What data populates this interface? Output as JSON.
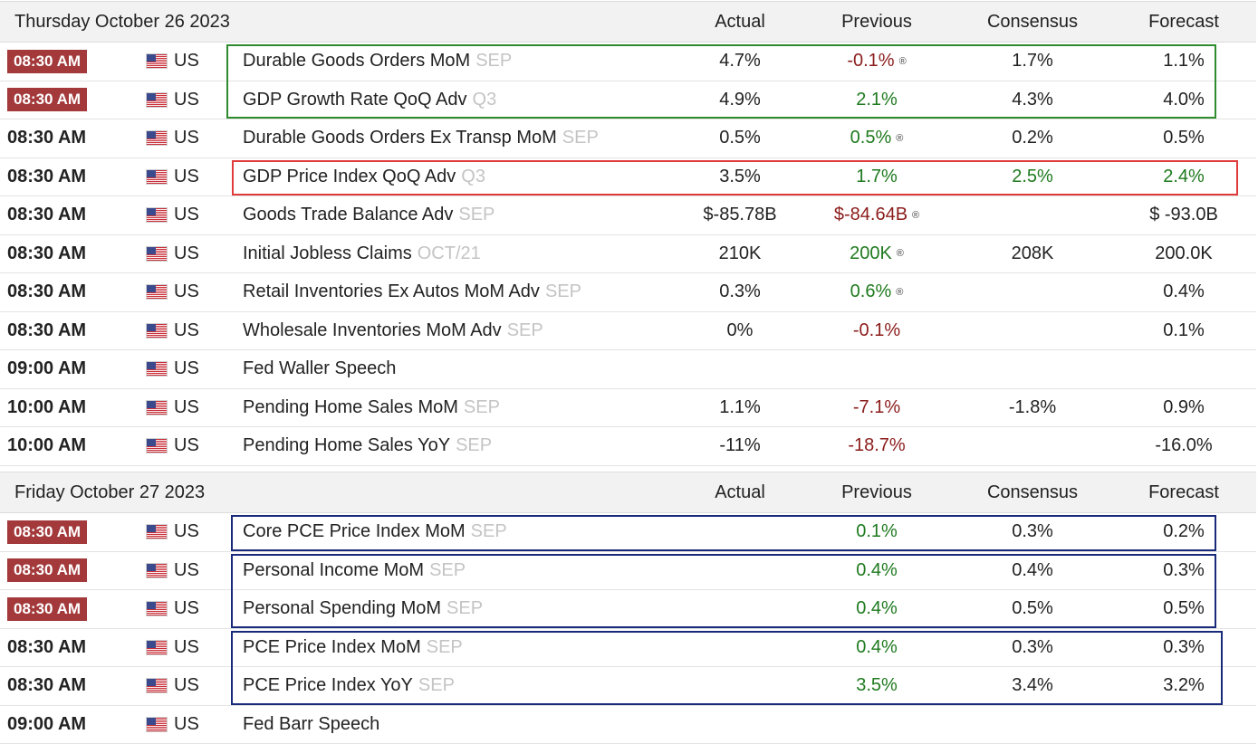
{
  "days": [
    {
      "title": "Thursday October 26 2023",
      "columns": {
        "actual": "Actual",
        "previous": "Previous",
        "consensus": "Consensus",
        "forecast": "Forecast"
      },
      "events": [
        {
          "time": "08:30 AM",
          "time_highlight": true,
          "country": "US",
          "event": "Durable Goods Orders MoM",
          "ref": "SEP",
          "actual": "4.7%",
          "previous": "-0.1%",
          "previous_color": "neg",
          "previous_revised": true,
          "consensus": "1.7%",
          "consensus_color": "neu",
          "forecast": "1.1%",
          "forecast_color": "neu"
        },
        {
          "time": "08:30 AM",
          "time_highlight": true,
          "country": "US",
          "event": "GDP Growth Rate QoQ Adv",
          "ref": "Q3",
          "actual": "4.9%",
          "previous": "2.1%",
          "previous_color": "pos",
          "previous_revised": false,
          "consensus": "4.3%",
          "consensus_color": "neu",
          "forecast": "4.0%",
          "forecast_color": "neu"
        },
        {
          "time": "08:30 AM",
          "time_highlight": false,
          "country": "US",
          "event": "Durable Goods Orders Ex Transp MoM",
          "ref": "SEP",
          "actual": "0.5%",
          "previous": "0.5%",
          "previous_color": "pos",
          "previous_revised": true,
          "consensus": "0.2%",
          "consensus_color": "neu",
          "forecast": "0.5%",
          "forecast_color": "neu"
        },
        {
          "time": "08:30 AM",
          "time_highlight": false,
          "country": "US",
          "event": "GDP Price Index QoQ Adv",
          "ref": "Q3",
          "actual": "3.5%",
          "previous": "1.7%",
          "previous_color": "pos",
          "previous_revised": false,
          "consensus": "2.5%",
          "consensus_color": "pos",
          "forecast": "2.4%",
          "forecast_color": "pos"
        },
        {
          "time": "08:30 AM",
          "time_highlight": false,
          "country": "US",
          "event": "Goods Trade Balance Adv",
          "ref": "SEP",
          "actual": "$-85.78B",
          "previous": "$-84.64B",
          "previous_color": "neg",
          "previous_revised": true,
          "consensus": "",
          "consensus_color": "neu",
          "forecast": "$ -93.0B",
          "forecast_color": "neu"
        },
        {
          "time": "08:30 AM",
          "time_highlight": false,
          "country": "US",
          "event": "Initial Jobless Claims",
          "ref": "OCT/21",
          "actual": "210K",
          "previous": "200K",
          "previous_color": "pos",
          "previous_revised": true,
          "consensus": "208K",
          "consensus_color": "neu",
          "forecast": "200.0K",
          "forecast_color": "neu"
        },
        {
          "time": "08:30 AM",
          "time_highlight": false,
          "country": "US",
          "event": "Retail Inventories Ex Autos MoM Adv",
          "ref": "SEP",
          "actual": "0.3%",
          "previous": "0.6%",
          "previous_color": "pos",
          "previous_revised": true,
          "consensus": "",
          "consensus_color": "neu",
          "forecast": "0.4%",
          "forecast_color": "neu"
        },
        {
          "time": "08:30 AM",
          "time_highlight": false,
          "country": "US",
          "event": "Wholesale Inventories MoM Adv",
          "ref": "SEP",
          "actual": "0%",
          "previous": "-0.1%",
          "previous_color": "neg",
          "previous_revised": false,
          "consensus": "",
          "consensus_color": "neu",
          "forecast": "0.1%",
          "forecast_color": "neu"
        },
        {
          "time": "09:00 AM",
          "time_highlight": false,
          "country": "US",
          "event": "Fed Waller Speech",
          "ref": "",
          "actual": "",
          "previous": "",
          "previous_color": "neu",
          "previous_revised": false,
          "consensus": "",
          "consensus_color": "neu",
          "forecast": "",
          "forecast_color": "neu"
        },
        {
          "time": "10:00 AM",
          "time_highlight": false,
          "country": "US",
          "event": "Pending Home Sales MoM",
          "ref": "SEP",
          "actual": "1.1%",
          "previous": "-7.1%",
          "previous_color": "neg",
          "previous_revised": false,
          "consensus": "-1.8%",
          "consensus_color": "neu",
          "forecast": "0.9%",
          "forecast_color": "neu"
        },
        {
          "time": "10:00 AM",
          "time_highlight": false,
          "country": "US",
          "event": "Pending Home Sales YoY",
          "ref": "SEP",
          "actual": "-11%",
          "previous": "-18.7%",
          "previous_color": "neg",
          "previous_revised": false,
          "consensus": "",
          "consensus_color": "neu",
          "forecast": "-16.0%",
          "forecast_color": "neu"
        }
      ]
    },
    {
      "title": "Friday October 27 2023",
      "columns": {
        "actual": "Actual",
        "previous": "Previous",
        "consensus": "Consensus",
        "forecast": "Forecast"
      },
      "events": [
        {
          "time": "08:30 AM",
          "time_highlight": true,
          "country": "US",
          "event": "Core PCE Price Index MoM",
          "ref": "SEP",
          "actual": "",
          "previous": "0.1%",
          "previous_color": "pos",
          "previous_revised": false,
          "consensus": "0.3%",
          "consensus_color": "neu",
          "forecast": "0.2%",
          "forecast_color": "neu"
        },
        {
          "time": "08:30 AM",
          "time_highlight": true,
          "country": "US",
          "event": "Personal Income MoM",
          "ref": "SEP",
          "actual": "",
          "previous": "0.4%",
          "previous_color": "pos",
          "previous_revised": false,
          "consensus": "0.4%",
          "consensus_color": "neu",
          "forecast": "0.3%",
          "forecast_color": "neu"
        },
        {
          "time": "08:30 AM",
          "time_highlight": true,
          "country": "US",
          "event": "Personal Spending MoM",
          "ref": "SEP",
          "actual": "",
          "previous": "0.4%",
          "previous_color": "pos",
          "previous_revised": false,
          "consensus": "0.5%",
          "consensus_color": "neu",
          "forecast": "0.5%",
          "forecast_color": "neu"
        },
        {
          "time": "08:30 AM",
          "time_highlight": false,
          "country": "US",
          "event": "PCE Price Index MoM",
          "ref": "SEP",
          "actual": "",
          "previous": "0.4%",
          "previous_color": "pos",
          "previous_revised": false,
          "consensus": "0.3%",
          "consensus_color": "neu",
          "forecast": "0.3%",
          "forecast_color": "neu"
        },
        {
          "time": "08:30 AM",
          "time_highlight": false,
          "country": "US",
          "event": "PCE Price Index YoY",
          "ref": "SEP",
          "actual": "",
          "previous": "3.5%",
          "previous_color": "pos",
          "previous_revised": false,
          "consensus": "3.4%",
          "consensus_color": "neu",
          "forecast": "3.2%",
          "forecast_color": "neu"
        },
        {
          "time": "09:00 AM",
          "time_highlight": false,
          "country": "US",
          "event": "Fed Barr Speech",
          "ref": "",
          "actual": "",
          "previous": "",
          "previous_color": "neu",
          "previous_revised": false,
          "consensus": "",
          "consensus_color": "neu",
          "forecast": "",
          "forecast_color": "neu"
        }
      ]
    }
  ],
  "revised_icon": "®",
  "flag_icon": "us-flag-icon",
  "colors": {
    "negative": "#8b1c1c",
    "positive": "#1f7a1f",
    "time_badge": "#a3393b",
    "highlight_green": "#2e8b2e",
    "highlight_red": "#e03b3b",
    "highlight_blue": "#1a2a7a"
  }
}
